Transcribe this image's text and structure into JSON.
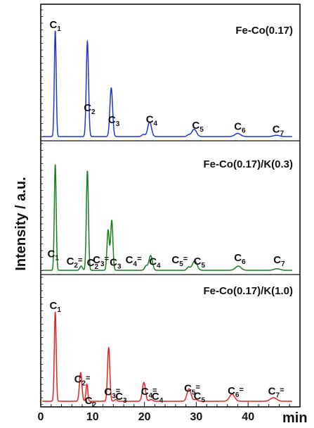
{
  "chart_data": {
    "type": "line",
    "xlabel": "min",
    "ylabel": "Intensity / a.u.",
    "xlim": [
      0,
      50
    ],
    "x_ticks": [
      "0",
      "10",
      "20",
      "30",
      "40"
    ],
    "grid": false,
    "panels": [
      {
        "title": "Fe-Co(0.17)",
        "color": "#1f35e0",
        "series": {
          "peaks": [
            {
              "x": 2.8,
              "height": 1.0,
              "width": 0.18
            },
            {
              "x": 9.0,
              "height": 0.9,
              "width": 0.22
            },
            {
              "x": 13.6,
              "height": 0.46,
              "width": 0.26
            },
            {
              "x": 21.0,
              "height": 0.14,
              "width": 0.36
            },
            {
              "x": 19.8,
              "height": 0.02,
              "width": 0.3
            },
            {
              "x": 29.6,
              "height": 0.07,
              "width": 0.45
            },
            {
              "x": 28.5,
              "height": 0.015,
              "width": 0.3
            },
            {
              "x": 38.0,
              "height": 0.03,
              "width": 0.55
            },
            {
              "x": 45.5,
              "height": 0.012,
              "width": 0.6
            }
          ]
        },
        "labels": [
          {
            "name": "C",
            "sub": "1",
            "suffix": "",
            "x": 2.8,
            "offset": 14
          },
          {
            "name": "C",
            "sub": "2",
            "suffix": "",
            "x": 9.4,
            "offset": 10
          },
          {
            "name": "C",
            "sub": "3",
            "suffix": "",
            "x": 14.1,
            "offset": 8
          },
          {
            "name": "C",
            "sub": "4",
            "suffix": "",
            "x": 21.4,
            "offset": 8
          },
          {
            "name": "C",
            "sub": "5",
            "suffix": "",
            "x": 30.3,
            "offset": 8
          },
          {
            "name": "C",
            "sub": "6",
            "suffix": "",
            "x": 38.4,
            "offset": 6
          },
          {
            "name": "C",
            "sub": "7",
            "suffix": "",
            "x": 45.8,
            "offset": 4
          }
        ]
      },
      {
        "title": "Fe-Co(0.17)/K(0.3)",
        "color": "#16801a",
        "series": {
          "peaks": [
            {
              "x": 2.8,
              "height": 1.0,
              "width": 0.18
            },
            {
              "x": 7.8,
              "height": 0.04,
              "width": 0.25
            },
            {
              "x": 9.0,
              "height": 0.94,
              "width": 0.2
            },
            {
              "x": 13.0,
              "height": 0.38,
              "width": 0.22
            },
            {
              "x": 13.7,
              "height": 0.47,
              "width": 0.22
            },
            {
              "x": 20.3,
              "height": 0.04,
              "width": 0.28
            },
            {
              "x": 21.2,
              "height": 0.14,
              "width": 0.34
            },
            {
              "x": 28.5,
              "height": 0.03,
              "width": 0.3
            },
            {
              "x": 29.7,
              "height": 0.09,
              "width": 0.45
            },
            {
              "x": 38.1,
              "height": 0.04,
              "width": 0.55
            },
            {
              "x": 45.6,
              "height": 0.015,
              "width": 0.6
            }
          ]
        },
        "labels": [
          {
            "name": "C",
            "sub": "1",
            "suffix": "",
            "x": 2.4,
            "offset": 6
          },
          {
            "name": "C",
            "sub": "2",
            "suffix": "",
            "x": 10.0,
            "offset": 6
          },
          {
            "name": "C",
            "sub": "2",
            "suffix": "=",
            "x": 6.5,
            "offset": 8
          },
          {
            "name": "C",
            "sub": "3",
            "suffix": "=",
            "x": 11.6,
            "offset": 10
          },
          {
            "name": "C",
            "sub": "3",
            "suffix": "",
            "x": 14.4,
            "offset": 6
          },
          {
            "name": "C",
            "sub": "4",
            "suffix": "=",
            "x": 17.9,
            "offset": 10
          },
          {
            "name": "C",
            "sub": "4",
            "suffix": "",
            "x": 22.0,
            "offset": 6
          },
          {
            "name": "C",
            "sub": "5",
            "suffix": "=",
            "x": 26.8,
            "offset": 10
          },
          {
            "name": "C",
            "sub": "5",
            "suffix": "",
            "x": 30.6,
            "offset": 6
          },
          {
            "name": "C",
            "sub": "6",
            "suffix": "",
            "x": 38.4,
            "offset": 8
          },
          {
            "name": "C",
            "sub": "7",
            "suffix": "",
            "x": 46.0,
            "offset": 8
          }
        ]
      },
      {
        "title": "Fe-Co(0.17)/K(1.0)",
        "color": "#e8221e",
        "series": {
          "peaks": [
            {
              "x": 2.8,
              "height": 1.0,
              "width": 0.18
            },
            {
              "x": 7.7,
              "height": 0.32,
              "width": 0.24
            },
            {
              "x": 8.9,
              "height": 0.19,
              "width": 0.18
            },
            {
              "x": 13.1,
              "height": 0.6,
              "width": 0.22
            },
            {
              "x": 14.5,
              "height": 0.02,
              "width": 0.25
            },
            {
              "x": 19.9,
              "height": 0.21,
              "width": 0.3
            },
            {
              "x": 21.3,
              "height": 0.02,
              "width": 0.3
            },
            {
              "x": 28.6,
              "height": 0.14,
              "width": 0.38
            },
            {
              "x": 29.9,
              "height": 0.02,
              "width": 0.35
            },
            {
              "x": 36.9,
              "height": 0.08,
              "width": 0.5
            },
            {
              "x": 44.9,
              "height": 0.04,
              "width": 0.6
            }
          ]
        },
        "labels": [
          {
            "name": "C",
            "sub": "1",
            "suffix": "",
            "x": 2.8,
            "offset": 10
          },
          {
            "name": "C",
            "sub": "2",
            "suffix": "=",
            "x": 8.0,
            "offset": 8
          },
          {
            "name": "C",
            "sub": "2",
            "suffix": "",
            "x": 9.6,
            "offset": -4
          },
          {
            "name": "C",
            "sub": "3",
            "suffix": "=",
            "x": 13.8,
            "offset": 8
          },
          {
            "name": "C",
            "sub": "3",
            "suffix": "",
            "x": 15.5,
            "offset": 2
          },
          {
            "name": "C",
            "sub": "4",
            "suffix": "=",
            "x": 20.9,
            "offset": 8
          },
          {
            "name": "C",
            "sub": "4",
            "suffix": "",
            "x": 22.5,
            "offset": 2
          },
          {
            "name": "C",
            "sub": "5",
            "suffix": "=",
            "x": 29.2,
            "offset": 8
          },
          {
            "name": "C",
            "sub": "5",
            "suffix": "",
            "x": 30.6,
            "offset": 2
          },
          {
            "name": "C",
            "sub": "6",
            "suffix": "=",
            "x": 37.6,
            "offset": 6
          },
          {
            "name": "C",
            "sub": "7",
            "suffix": "=",
            "x": 45.4,
            "offset": 6
          }
        ]
      }
    ]
  }
}
